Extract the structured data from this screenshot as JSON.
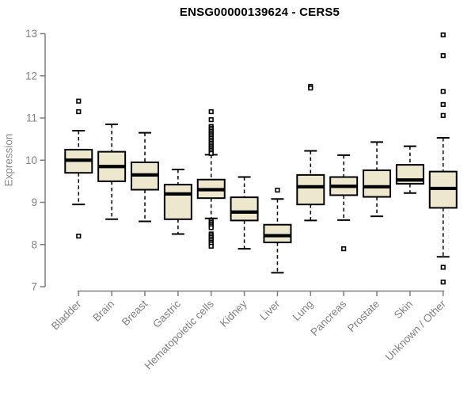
{
  "chart_data": {
    "type": "boxplot",
    "title": "ENSG00000139624 - CERS5",
    "ylabel": "Expression",
    "xlabel": "",
    "ylim": [
      7,
      13
    ],
    "yticks": [
      7,
      8,
      9,
      10,
      11,
      12,
      13
    ],
    "grid": false,
    "legend": null,
    "colors": {
      "box_fill": "#ede8cd",
      "box_stroke": "#000000",
      "median": "#000000",
      "whisker": "#000000",
      "outlier_stroke": "#000000",
      "outlier_fill": "#ffffff",
      "axis": "#7f7f7f",
      "tick_label": "#7f7f7f",
      "title_color": "#000000"
    },
    "categories": [
      "Bladder",
      "Brain",
      "Breast",
      "Gastric",
      "Hematopoietic cells",
      "Kidney",
      "Liver",
      "Lung",
      "Pancreas",
      "Prostate",
      "Skin",
      "Unknown / Other"
    ],
    "series": [
      {
        "category": "Bladder",
        "whisker_low": 8.95,
        "q1": 9.7,
        "median": 10.0,
        "q3": 10.25,
        "whisker_high": 10.7,
        "outliers": [
          11.4,
          11.15,
          8.2
        ]
      },
      {
        "category": "Brain",
        "whisker_low": 8.6,
        "q1": 9.5,
        "median": 9.85,
        "q3": 10.2,
        "whisker_high": 10.85,
        "outliers": []
      },
      {
        "category": "Breast",
        "whisker_low": 8.55,
        "q1": 9.3,
        "median": 9.65,
        "q3": 9.95,
        "whisker_high": 10.65,
        "outliers": []
      },
      {
        "category": "Gastric",
        "whisker_low": 8.25,
        "q1": 8.6,
        "median": 9.2,
        "q3": 9.42,
        "whisker_high": 9.78,
        "outliers": []
      },
      {
        "category": "Hematopoietic cells",
        "whisker_low": 8.62,
        "q1": 9.1,
        "median": 9.3,
        "q3": 9.54,
        "whisker_high": 10.13,
        "outliers": [
          11.15,
          10.96,
          10.8,
          10.76,
          10.72,
          10.68,
          10.64,
          10.6,
          10.56,
          10.52,
          10.48,
          10.44,
          10.4,
          10.36,
          10.32,
          10.28,
          10.24,
          10.2,
          10.16,
          8.56,
          8.52,
          8.48,
          8.44,
          8.4,
          8.25,
          8.21,
          8.17,
          8.13,
          8.09,
          8.05,
          8.01,
          7.96
        ]
      },
      {
        "category": "Kidney",
        "whisker_low": 7.9,
        "q1": 8.57,
        "median": 8.77,
        "q3": 9.12,
        "whisker_high": 9.6,
        "outliers": []
      },
      {
        "category": "Liver",
        "whisker_low": 7.33,
        "q1": 8.05,
        "median": 8.21,
        "q3": 8.47,
        "whisker_high": 9.08,
        "outliers": [
          9.29
        ]
      },
      {
        "category": "Lung",
        "whisker_low": 8.57,
        "q1": 8.95,
        "median": 9.37,
        "q3": 9.65,
        "whisker_high": 10.22,
        "outliers": [
          11.75,
          11.71
        ]
      },
      {
        "category": "Pancreas",
        "whisker_low": 8.58,
        "q1": 9.17,
        "median": 9.38,
        "q3": 9.6,
        "whisker_high": 10.12,
        "outliers": [
          7.9
        ]
      },
      {
        "category": "Prostate",
        "whisker_low": 8.67,
        "q1": 9.13,
        "median": 9.37,
        "q3": 9.76,
        "whisker_high": 10.43,
        "outliers": []
      },
      {
        "category": "Skin",
        "whisker_low": 9.22,
        "q1": 9.44,
        "median": 9.53,
        "q3": 9.89,
        "whisker_high": 10.33,
        "outliers": []
      },
      {
        "category": "Unknown / Other",
        "whisker_low": 7.71,
        "q1": 8.87,
        "median": 9.33,
        "q3": 9.73,
        "whisker_high": 10.53,
        "outliers": [
          12.97,
          12.48,
          11.63,
          11.32,
          11.06,
          7.46,
          7.11
        ]
      }
    ]
  }
}
